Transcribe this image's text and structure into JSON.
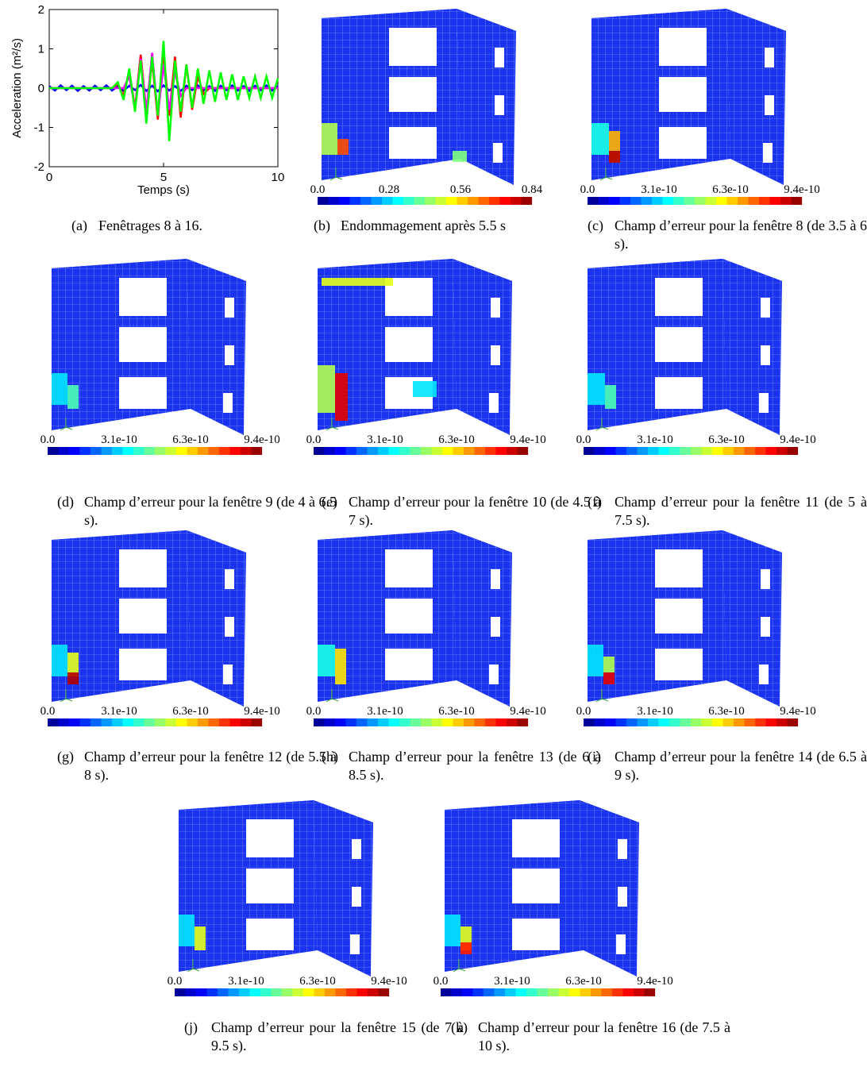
{
  "panels": [
    {
      "label": "(a)",
      "caption": "Fenêtrages 8 à 16.",
      "chart": {
        "type": "line",
        "ylabel": "Acceleration (m²/s)",
        "xlabel": "Temps (s)",
        "xlim": [
          0,
          10
        ],
        "xticks": [
          0,
          5,
          10
        ],
        "ylim": [
          -2,
          2
        ],
        "yticks": [
          -2,
          -1,
          0,
          1,
          2
        ],
        "x": [
          0,
          0.25,
          0.5,
          0.75,
          1,
          1.25,
          1.5,
          1.75,
          2,
          2.25,
          2.5,
          2.75,
          3,
          3.25,
          3.5,
          3.75,
          4,
          4.25,
          4.5,
          4.75,
          5,
          5.25,
          5.5,
          5.75,
          6,
          6.25,
          6.5,
          6.75,
          7,
          7.25,
          7.5,
          7.75,
          8,
          8.25,
          8.5,
          8.75,
          9,
          9.25,
          9.5,
          9.75,
          10
        ],
        "series": [
          {
            "color": "#0000ff",
            "values": [
              0.05,
              -0.06,
              0.07,
              -0.05,
              0.06,
              -0.07,
              0.05,
              -0.06,
              0.06,
              -0.05,
              0.07,
              -0.06,
              0.05,
              -0.07,
              0.06,
              -0.05,
              0.08,
              -0.07,
              0.06,
              -0.08,
              0.07,
              -0.06,
              0.05,
              -0.07,
              0.06,
              -0.05,
              0.07,
              -0.06,
              0.05,
              -0.07,
              0.06,
              -0.05,
              0.07,
              -0.06,
              0.05,
              -0.07,
              0.06,
              -0.05,
              0.07,
              -0.06,
              0.05
            ]
          },
          {
            "color": "#ff0000",
            "values": [
              0,
              0,
              0,
              0,
              0,
              0,
              0,
              0,
              0,
              0,
              0,
              0,
              0.1,
              -0.2,
              0.45,
              -0.5,
              0.85,
              -0.6,
              0.7,
              -0.8,
              0.95,
              -0.7,
              0.8,
              -0.75,
              0.6,
              -0.55,
              0.3,
              -0.15,
              0,
              0,
              0,
              0,
              0,
              0,
              0,
              0,
              0,
              0,
              0,
              0,
              0
            ]
          },
          {
            "color": "#ff00ff",
            "values": [
              0,
              0,
              0,
              0,
              0,
              0,
              0,
              0,
              0,
              0,
              0,
              0,
              0,
              0,
              0.3,
              -0.5,
              0.75,
              -0.6,
              0.9,
              -0.7,
              0.6,
              -0.55,
              0.4,
              -0.2,
              0,
              0,
              0,
              0,
              0,
              0,
              0,
              0,
              0,
              0,
              0,
              0,
              0,
              0,
              0,
              0,
              0
            ]
          },
          {
            "color": "#00ff00",
            "values": [
              0,
              0,
              0,
              0,
              0,
              0,
              0,
              0,
              0,
              0,
              0,
              0,
              0.15,
              -0.3,
              0.5,
              -0.6,
              0.7,
              -0.9,
              0.8,
              -0.7,
              1.2,
              -1.35,
              0.7,
              -0.6,
              0.6,
              -0.5,
              0.5,
              -0.4,
              0.45,
              -0.35,
              0.4,
              -0.3,
              0.35,
              -0.3,
              0.3,
              -0.25,
              0.3,
              -0.25,
              0.3,
              -0.25,
              0.25
            ]
          }
        ]
      }
    },
    {
      "label": "(b)",
      "caption": "Endommagement après 5.5 s",
      "colorbar": [
        "0.0",
        "0.28",
        "0.56",
        "0.84"
      ]
    },
    {
      "label": "(c)",
      "caption": "Champ d’erreur pour la fenêtre 8 (de 3.5 à 6 s).",
      "colorbar": [
        "0.0",
        "3.1e-10",
        "6.3e-10",
        "9.4e-10"
      ]
    },
    {
      "label": "(d)",
      "caption": "Champ d’erreur pour la fenêtre 9 (de 4 à 6.5 s).",
      "colorbar": [
        "0.0",
        "3.1e-10",
        "6.3e-10",
        "9.4e-10"
      ]
    },
    {
      "label": "(e)",
      "caption": "Champ d’erreur pour la fenêtre 10 (de 4.5 à 7 s).",
      "colorbar": [
        "0.0",
        "3.1e-10",
        "6.3e-10",
        "9.4e-10"
      ]
    },
    {
      "label": "(f)",
      "caption": "Champ d’erreur pour la fenêtre 11 (de 5 à 7.5 s).",
      "colorbar": [
        "0.0",
        "3.1e-10",
        "6.3e-10",
        "9.4e-10"
      ]
    },
    {
      "label": "(g)",
      "caption": "Champ d’erreur pour la fenêtre 12 (de 5.5 à 8 s).",
      "colorbar": [
        "0.0",
        "3.1e-10",
        "6.3e-10",
        "9.4e-10"
      ]
    },
    {
      "label": "(h)",
      "caption": "Champ d’erreur pour la fenêtre 13 (de 6 à 8.5 s).",
      "colorbar": [
        "0.0",
        "3.1e-10",
        "6.3e-10",
        "9.4e-10"
      ]
    },
    {
      "label": "(i)",
      "caption": "Champ d’erreur pour la fenêtre 14 (de 6.5 à 9 s).",
      "colorbar": [
        "0.0",
        "3.1e-10",
        "6.3e-10",
        "9.4e-10"
      ]
    },
    {
      "label": "(j)",
      "caption": "Champ d’erreur pour la fenêtre 15 (de 7 à 9.5 s).",
      "colorbar": [
        "0.0",
        "3.1e-10",
        "6.3e-10",
        "9.4e-10"
      ]
    },
    {
      "label": "(k)",
      "caption": "Champ d’erreur pour la fenêtre 16 (de 7.5 à 10 s).",
      "colorbar": [
        "0.0",
        "3.1e-10",
        "6.3e-10",
        "9.4e-10"
      ]
    }
  ]
}
